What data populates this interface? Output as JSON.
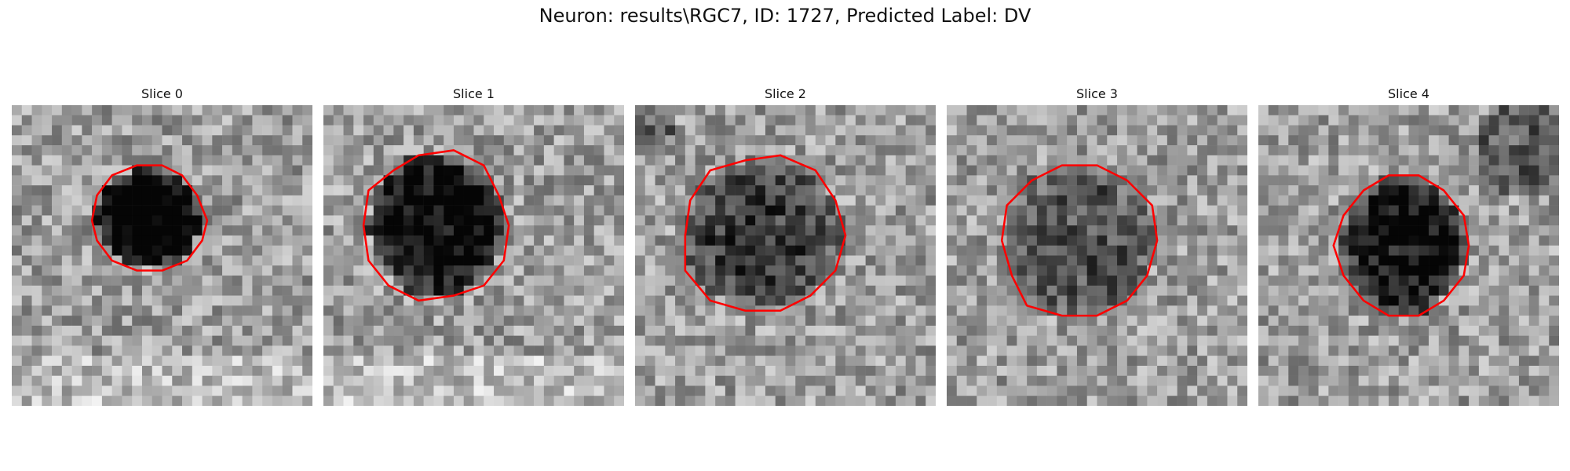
{
  "title": "Neuron: results\\RGC7, ID: 1727, Predicted Label: DV",
  "slices": [
    {
      "label": "Slice 0"
    },
    {
      "label": "Slice 1"
    },
    {
      "label": "Slice 2"
    },
    {
      "label": "Slice 3"
    },
    {
      "label": "Slice 4"
    }
  ],
  "colors": {
    "contour": "#ff0000",
    "background": "#ffffff"
  }
}
